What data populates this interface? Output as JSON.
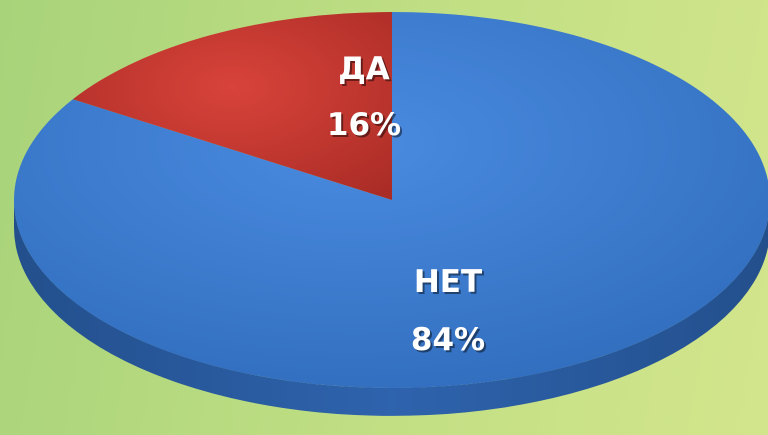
{
  "chart_data": {
    "type": "pie",
    "style": "3d",
    "slices": [
      {
        "label": "ДА",
        "value": 16,
        "percent_label": "16%",
        "color": "#c0362f"
      },
      {
        "label": "НЕТ",
        "value": 84,
        "percent_label": "84%",
        "color": "#3c7bd0"
      }
    ],
    "legend": "none",
    "start_angle": "12-o-clock",
    "direction": "counter-clockwise-for-first-slice"
  },
  "colors": {
    "background_left": "#a8d37a",
    "background_right": "#d3e58c",
    "red_side": "#8e2621",
    "blue_side": "#2a5b9e"
  }
}
